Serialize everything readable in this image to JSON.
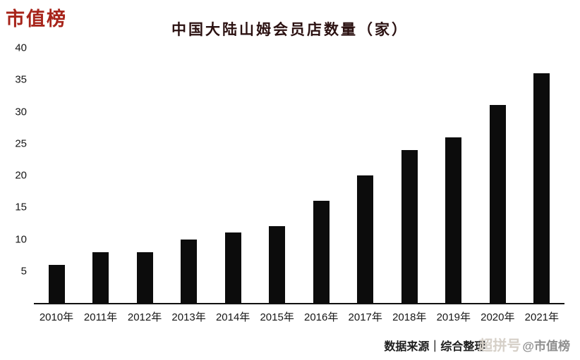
{
  "logo": {
    "text": "市值榜"
  },
  "chart_data": {
    "type": "bar",
    "title": "中国大陆山姆会员店数量（家）",
    "categories": [
      "2010年",
      "2011年",
      "2012年",
      "2013年",
      "2014年",
      "2015年",
      "2016年",
      "2017年",
      "2018年",
      "2019年",
      "2020年",
      "2021年"
    ],
    "values": [
      6,
      8,
      8,
      10,
      11,
      12,
      16,
      20,
      24,
      26,
      31,
      36
    ],
    "xlabel": "",
    "ylabel": "",
    "ylim": [
      0,
      40
    ],
    "yticks": [
      5,
      10,
      15,
      20,
      25,
      30,
      35,
      40
    ],
    "bar_color": "#0c0c0c",
    "grid": false,
    "legend": "none"
  },
  "footer": {
    "source": "数据来源｜综合整理",
    "watermark_light": "超拼号",
    "watermark": "@市值榜"
  },
  "colors": {
    "background": "#ffffff",
    "logo_red": "#a7241a",
    "title_dark": "#2b1111",
    "bar_black": "#0c0c0c",
    "axis_black": "#111111",
    "watermark_gray": "#8f8f8f",
    "watermark_light_gray": "#d6d0c8"
  }
}
